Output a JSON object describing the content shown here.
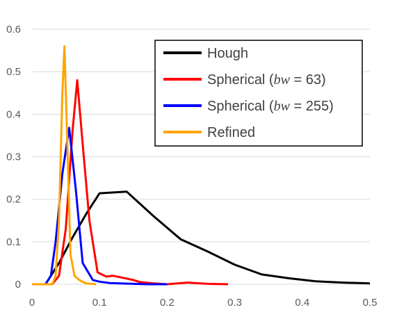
{
  "chart_data": {
    "type": "line",
    "title": "",
    "xlabel": "",
    "ylabel": "",
    "xlim": [
      0,
      0.5
    ],
    "ylim": [
      0,
      0.6
    ],
    "x_ticks": [
      "0",
      "0.1",
      "0.2",
      "0.3",
      "0.4",
      "0.5"
    ],
    "y_ticks": [
      "0",
      "0.1",
      "0.2",
      "0.3",
      "0.4",
      "0.5",
      "0.6"
    ],
    "grid": "horizontal",
    "legend_position": "top-right",
    "series": [
      {
        "name": "Hough",
        "label_prefix": "Hough",
        "label_math": "",
        "label_suffix": "",
        "color": "#000000",
        "points": [
          [
            0,
            0
          ],
          [
            0.02,
            0.0
          ],
          [
            0.04,
            0.05
          ],
          [
            0.06,
            0.11
          ],
          [
            0.08,
            0.165
          ],
          [
            0.1,
            0.214
          ],
          [
            0.14,
            0.218
          ],
          [
            0.18,
            0.16
          ],
          [
            0.22,
            0.106
          ],
          [
            0.26,
            0.077
          ],
          [
            0.3,
            0.046
          ],
          [
            0.34,
            0.023
          ],
          [
            0.38,
            0.014
          ],
          [
            0.42,
            0.007
          ],
          [
            0.46,
            0.004
          ],
          [
            0.5,
            0.002
          ]
        ]
      },
      {
        "name": "Spherical (bw = 63)",
        "label_prefix": "Spherical (",
        "label_math": "bw",
        "label_suffix": " = 63)",
        "color": "#ff0000",
        "points": [
          [
            0,
            0
          ],
          [
            0.03,
            0.0
          ],
          [
            0.04,
            0.02
          ],
          [
            0.05,
            0.13
          ],
          [
            0.06,
            0.36
          ],
          [
            0.067,
            0.48
          ],
          [
            0.075,
            0.33
          ],
          [
            0.085,
            0.15
          ],
          [
            0.097,
            0.028
          ],
          [
            0.11,
            0.018
          ],
          [
            0.12,
            0.02
          ],
          [
            0.135,
            0.015
          ],
          [
            0.15,
            0.01
          ],
          [
            0.16,
            0.005
          ],
          [
            0.18,
            0.002
          ],
          [
            0.2,
            0.0
          ],
          [
            0.23,
            0.004
          ],
          [
            0.26,
            0.001
          ],
          [
            0.29,
            0.0
          ]
        ]
      },
      {
        "name": "Spherical (bw = 255)",
        "label_prefix": "Spherical (",
        "label_math": "bw",
        "label_suffix": " = 255)",
        "color": "#0000ff",
        "points": [
          [
            0,
            0
          ],
          [
            0.02,
            0.0
          ],
          [
            0.028,
            0.02
          ],
          [
            0.035,
            0.1
          ],
          [
            0.045,
            0.26
          ],
          [
            0.055,
            0.368
          ],
          [
            0.065,
            0.22
          ],
          [
            0.075,
            0.05
          ],
          [
            0.09,
            0.01
          ],
          [
            0.1,
            0.006
          ],
          [
            0.115,
            0.003
          ],
          [
            0.13,
            0.002
          ],
          [
            0.15,
            0.001
          ],
          [
            0.17,
            0.0
          ],
          [
            0.2,
            0.0
          ]
        ]
      },
      {
        "name": "Refined",
        "label_prefix": "Refined",
        "label_math": "",
        "label_suffix": "",
        "color": "#ffa500",
        "points": [
          [
            0,
            0
          ],
          [
            0.03,
            0.0
          ],
          [
            0.035,
            0.02
          ],
          [
            0.04,
            0.15
          ],
          [
            0.045,
            0.45
          ],
          [
            0.048,
            0.56
          ],
          [
            0.052,
            0.35
          ],
          [
            0.057,
            0.07
          ],
          [
            0.063,
            0.02
          ],
          [
            0.07,
            0.01
          ],
          [
            0.08,
            0.002
          ],
          [
            0.095,
            0.0
          ]
        ]
      }
    ]
  }
}
